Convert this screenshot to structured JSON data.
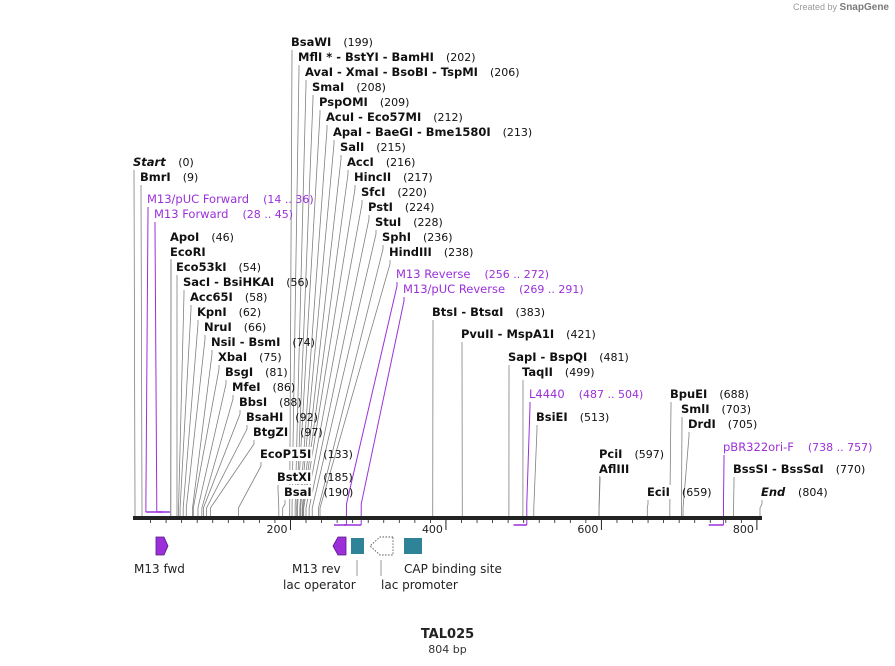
{
  "branding": {
    "created_by": "Created by",
    "app": "SnapGene"
  },
  "plasmid": {
    "name": "TAL025",
    "length_label": "804 bp"
  },
  "ruler": {
    "ticks": [
      "200",
      "400",
      "600",
      "800"
    ]
  },
  "colors": {
    "primer": "#9b30d9",
    "feature_box": "#2e8399",
    "line": "#7f7f7f",
    "backbone": "#222222"
  },
  "sites": [
    {
      "name": "BsaWI",
      "pos": "(199)"
    },
    {
      "name": "MflI * - BstYI - BamHI",
      "pos": "(202)"
    },
    {
      "name": "AvaI - XmaI - BsoBI - TspMI",
      "pos": "(206)"
    },
    {
      "name": "SmaI",
      "pos": "(208)"
    },
    {
      "name": "PspOMI",
      "pos": "(209)"
    },
    {
      "name": "AcuI - Eco57MI",
      "pos": "(212)"
    },
    {
      "name": "ApaI - BaeGI - Bme1580I",
      "pos": "(213)"
    },
    {
      "name": "SalI",
      "pos": "(215)"
    },
    {
      "name": "AccI",
      "pos": "(216)"
    },
    {
      "name": "HincII",
      "pos": "(217)"
    },
    {
      "name": "SfcI",
      "pos": "(220)"
    },
    {
      "name": "PstI",
      "pos": "(224)"
    },
    {
      "name": "StuI",
      "pos": "(228)"
    },
    {
      "name": "SphI",
      "pos": "(236)"
    },
    {
      "name": "HindIII",
      "pos": "(238)"
    },
    {
      "name": "Start",
      "pos": "(0)"
    },
    {
      "name": "BmrI",
      "pos": "(9)"
    },
    {
      "name": "ApoI",
      "pos": "(46)"
    },
    {
      "name": "EcoRI",
      "pos": ""
    },
    {
      "name": "Eco53kI",
      "pos": "(54)"
    },
    {
      "name": "SacI - BsiHKAI",
      "pos": "(56)"
    },
    {
      "name": "Acc65I",
      "pos": "(58)"
    },
    {
      "name": "KpnI",
      "pos": "(62)"
    },
    {
      "name": "NruI",
      "pos": "(66)"
    },
    {
      "name": "NsiI - BsmI",
      "pos": "(74)"
    },
    {
      "name": "XbaI",
      "pos": "(75)"
    },
    {
      "name": "BsgI",
      "pos": "(81)"
    },
    {
      "name": "MfeI",
      "pos": "(86)"
    },
    {
      "name": "BbsI",
      "pos": "(88)"
    },
    {
      "name": "BsaHI",
      "pos": "(92)"
    },
    {
      "name": "BtgZI",
      "pos": "(97)"
    },
    {
      "name": "EcoP15I",
      "pos": "(133)"
    },
    {
      "name": "BstXI",
      "pos": "(185)"
    },
    {
      "name": "BsaI",
      "pos": "(190)"
    },
    {
      "name": "BtsI - BtsαI",
      "pos": "(383)"
    },
    {
      "name": "PvuII - MspA1I",
      "pos": "(421)"
    },
    {
      "name": "SapI - BspQI",
      "pos": "(481)"
    },
    {
      "name": "TaqII",
      "pos": "(499)"
    },
    {
      "name": "BsiEI",
      "pos": "(513)"
    },
    {
      "name": "PciI",
      "pos": "(597)"
    },
    {
      "name": "AflIII",
      "pos": ""
    },
    {
      "name": "EciI",
      "pos": "(659)"
    },
    {
      "name": "BpuEI",
      "pos": "(688)"
    },
    {
      "name": "SmlI",
      "pos": "(703)"
    },
    {
      "name": "DrdI",
      "pos": "(705)"
    },
    {
      "name": "BssSI - BssSαI",
      "pos": "(770)"
    },
    {
      "name": "End",
      "pos": "(804)"
    }
  ],
  "primers": [
    {
      "name": "M13/pUC Forward",
      "range": "(14 .. 36)"
    },
    {
      "name": "M13 Forward",
      "range": "(28 .. 45)"
    },
    {
      "name": "M13 Reverse",
      "range": "(256 .. 272)"
    },
    {
      "name": "M13/pUC Reverse",
      "range": "(269 .. 291)"
    },
    {
      "name": "L4440",
      "range": "(487 .. 504)"
    },
    {
      "name": "pBR322ori-F",
      "range": "(738 .. 757)"
    }
  ],
  "features": [
    {
      "label": "M13 fwd"
    },
    {
      "label": "M13 rev"
    },
    {
      "label": "lac operator"
    },
    {
      "label": "lac promoter"
    },
    {
      "label": "CAP binding site"
    }
  ]
}
